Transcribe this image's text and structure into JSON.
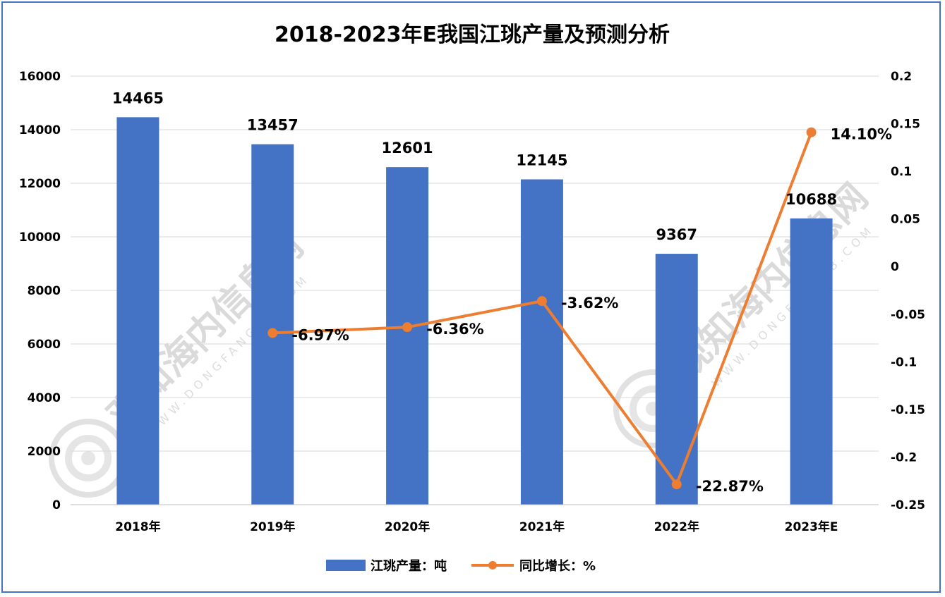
{
  "chart_data": {
    "type": "bar+line",
    "title": "2018-2023年E我国江珧产量及预测分析",
    "categories": [
      "2018年",
      "2019年",
      "2020年",
      "2021年",
      "2022年",
      "2023年E"
    ],
    "series": [
      {
        "name": "江珧产量：吨",
        "type": "bar",
        "axis": "left",
        "values": [
          14465,
          13457,
          12601,
          12145,
          9367,
          10688
        ],
        "labels": [
          "14465",
          "13457",
          "12601",
          "12145",
          "9367",
          "10688"
        ],
        "color": "#4472c4"
      },
      {
        "name": "同比增长：%",
        "type": "line",
        "axis": "right",
        "values": [
          null,
          -0.0697,
          -0.0636,
          -0.0362,
          -0.2287,
          0.141
        ],
        "labels": [
          "",
          "-6.97%",
          "-6.36%",
          "-3.62%",
          "-22.87%",
          "14.10%"
        ],
        "color": "#ed7d31"
      }
    ],
    "y_left": {
      "ylim": [
        0,
        16000
      ],
      "ticks": [
        0,
        2000,
        4000,
        6000,
        8000,
        10000,
        12000,
        14000,
        16000
      ],
      "tick_labels": [
        "0",
        "2000",
        "4000",
        "6000",
        "8000",
        "10000",
        "12000",
        "14000",
        "16000"
      ]
    },
    "y_right": {
      "ylim": [
        -0.25,
        0.2
      ],
      "ticks": [
        -0.25,
        -0.2,
        -0.15,
        -0.1,
        -0.05,
        0,
        0.05,
        0.1,
        0.15,
        0.2
      ],
      "tick_labels": [
        "-0.25",
        "-0.2",
        "-0.15",
        "-0.1",
        "-0.05",
        "0",
        "0.05",
        "0.1",
        "0.15",
        "0.2"
      ]
    },
    "grid": true,
    "legend": "bottom-center"
  },
  "watermark": {
    "text": "观知海内信息网",
    "sub": "WWW.DONGFANGQB.COM"
  },
  "colors": {
    "frame": "#4472c4",
    "grid": "#d9d9d9",
    "bar": "#4472c4",
    "line": "#ed7d31"
  }
}
